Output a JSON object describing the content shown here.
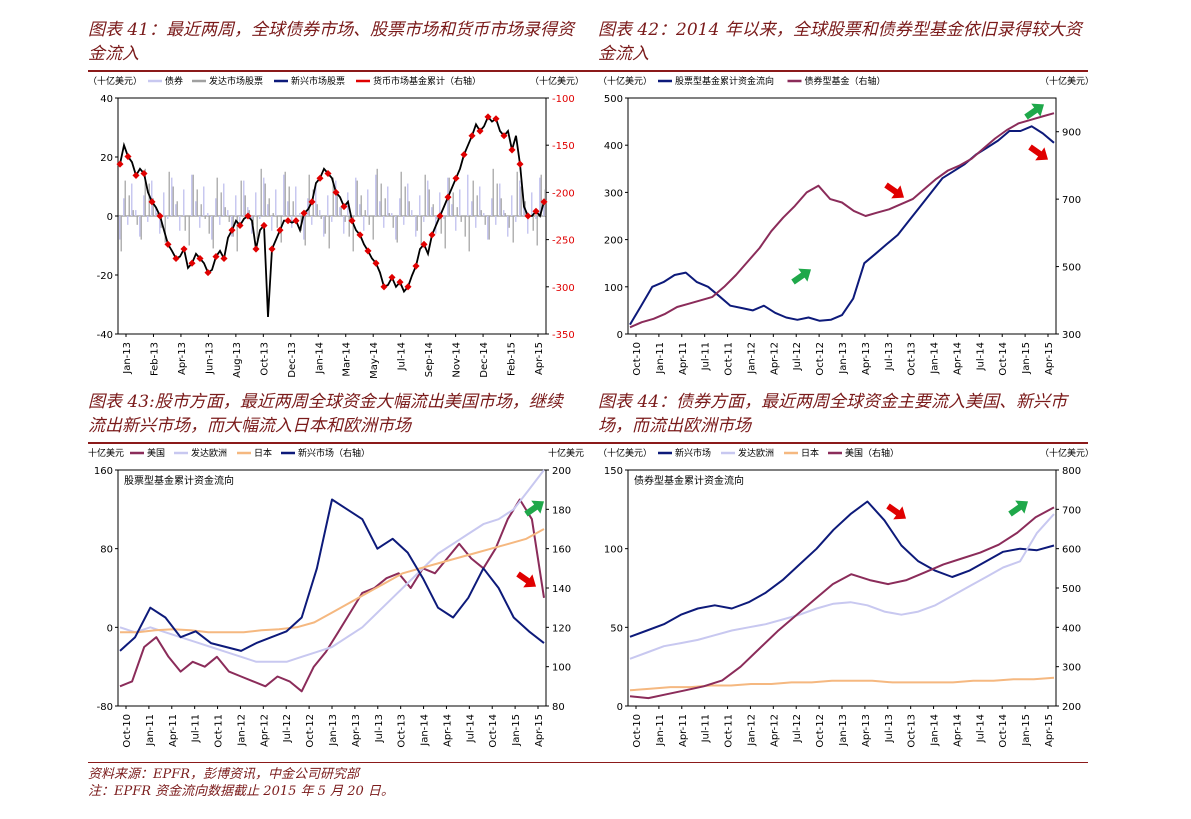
{
  "captions": {
    "c41": "图表 41：最近两周，全球债券市场、股票市场和货币市场录得资金流入",
    "c42": "图表 42：2014 年以来，全球股票和债券型基金依旧录得较大资金流入",
    "c43": "图表 43:股市方面，最近两周全球资金大幅流出美国市场，继续流出新兴市场，而大幅流入日本和欧洲市场",
    "c44": "图表 44：债券方面，最近两周全球资金主要流入美国、新兴市场，而流出欧洲市场"
  },
  "footnotes": {
    "source": "资料来源：EPFR，彭博资讯，中金公司研究部",
    "note": "注：EPFR 资金流向数据截止 2015 年 5 月 20 日。"
  },
  "colors": {
    "navy": "#0d1a7a",
    "maroon": "#8b2c5a",
    "lavender": "#c8c8f0",
    "orange": "#f5b880",
    "gray": "#a0a0a0",
    "red": "#e00000",
    "green": "#1fa84a",
    "axis": "#000000"
  },
  "chart_data": [
    {
      "id": "chart41",
      "type": "bar",
      "title": "",
      "unit_left": "（十亿美元）",
      "unit_right": "（十亿美元）",
      "legend": [
        "债券",
        "发达市场股票",
        "新兴市场股票",
        "货币市场基金累计（右轴）"
      ],
      "x_ticks": [
        "Jan-13",
        "Feb-13",
        "Apr-13",
        "Jun-13",
        "Aug-13",
        "Oct-13",
        "Dec-13",
        "Jan-14",
        "Mar-14",
        "May-14",
        "Jul-14",
        "Sep-14",
        "Nov-14",
        "Dec-14",
        "Feb-15",
        "Apr-15"
      ],
      "ylim_left": [
        -40,
        40
      ],
      "yticks_left": [
        40,
        20,
        0,
        -20,
        -40
      ],
      "ylim_right": [
        -350,
        -100
      ],
      "yticks_right": [
        -100,
        -150,
        -200,
        -250,
        -300,
        -350
      ],
      "money_market_cum_right": [
        -170,
        -150,
        -162,
        -168,
        -182,
        -175,
        -180,
        -200,
        -210,
        -216,
        -225,
        -240,
        -255,
        -262,
        -270,
        -268,
        -260,
        -280,
        -275,
        -265,
        -270,
        -275,
        -285,
        -282,
        -268,
        -262,
        -270,
        -248,
        -240,
        -230,
        -235,
        -228,
        -225,
        -230,
        -260,
        -240,
        -235,
        -332,
        -260,
        -250,
        -240,
        -230,
        -230,
        -232,
        -230,
        -240,
        -222,
        -218,
        -210,
        -190,
        -185,
        -175,
        -180,
        -185,
        -200,
        -205,
        -215,
        -210,
        -230,
        -240,
        -245,
        -255,
        -262,
        -270,
        -275,
        -285,
        -300,
        -298,
        -290,
        -300,
        -295,
        -305,
        -300,
        -288,
        -278,
        -260,
        -255,
        -265,
        -245,
        -235,
        -225,
        -215,
        -205,
        -195,
        -185,
        -175,
        -160,
        -150,
        -140,
        -128,
        -135,
        -130,
        -120,
        -125,
        -122,
        -135,
        -140,
        -135,
        -155,
        -140,
        -170,
        -215,
        -225,
        -225,
        -220,
        -225,
        -210
      ]
    },
    {
      "id": "chart42",
      "type": "line",
      "unit_left": "（十亿美元）",
      "unit_right": "（十亿美元）",
      "legend": [
        "股票型基金累计资金流向",
        "债券型基金（右轴）"
      ],
      "x_ticks": [
        "Oct-10",
        "Jan-11",
        "Apr-11",
        "Jul-11",
        "Oct-11",
        "Jan-12",
        "Apr-12",
        "Jul-12",
        "Oct-12",
        "Jan-13",
        "Apr-13",
        "Jul-13",
        "Oct-13",
        "Jan-14",
        "Apr-14",
        "Jul-14",
        "Oct-14",
        "Jan-15",
        "Apr-15"
      ],
      "ylim_left": [
        0,
        500
      ],
      "yticks_left": [
        500,
        400,
        300,
        200,
        100,
        0
      ],
      "ylim_right": [
        300,
        1000
      ],
      "yticks_right": [
        900,
        700,
        500,
        300
      ],
      "series": [
        {
          "name": "股票型基金累计资金流向",
          "axis": "left",
          "color": "navy",
          "values": [
            20,
            60,
            100,
            110,
            125,
            130,
            110,
            100,
            80,
            60,
            55,
            50,
            60,
            45,
            35,
            30,
            35,
            28,
            30,
            40,
            75,
            150,
            170,
            190,
            210,
            240,
            270,
            300,
            330,
            345,
            360,
            380,
            395,
            410,
            430,
            430,
            440,
            425,
            405
          ]
        },
        {
          "name": "债券型基金（右轴）",
          "axis": "right",
          "color": "maroon",
          "values": [
            320,
            335,
            345,
            360,
            380,
            390,
            400,
            410,
            440,
            475,
            515,
            555,
            605,
            645,
            680,
            720,
            740,
            700,
            690,
            665,
            650,
            660,
            670,
            685,
            700,
            730,
            760,
            785,
            800,
            820,
            850,
            880,
            905,
            925,
            935,
            945,
            955
          ]
        }
      ],
      "annotations": [
        "green-up",
        "red-down",
        "green-up",
        "red-down"
      ]
    },
    {
      "id": "chart43",
      "type": "line",
      "title": "股票型基金累计资金流向",
      "unit_left": "十亿美元",
      "unit_right": "十亿美元",
      "legend": [
        "美国",
        "发达欧洲",
        "日本",
        "新兴市场（右轴）"
      ],
      "x_ticks": [
        "Oct-10",
        "Jan-11",
        "Apr-11",
        "Jul-11",
        "Oct-11",
        "Jan-12",
        "Apr-12",
        "Jul-12",
        "Oct-12",
        "Jan-13",
        "Apr-13",
        "Jul-13",
        "Oct-13",
        "Jan-14",
        "Apr-14",
        "Jul-14",
        "Oct-14",
        "Jan-15",
        "Apr-15"
      ],
      "ylim_left": [
        -80,
        160
      ],
      "yticks_left": [
        160,
        80,
        0,
        -80
      ],
      "ylim_right": [
        80,
        200
      ],
      "yticks_right": [
        200,
        180,
        160,
        140,
        120,
        100,
        80
      ],
      "series": [
        {
          "name": "美国",
          "axis": "left",
          "color": "maroon",
          "values": [
            -60,
            -55,
            -20,
            -10,
            -30,
            -45,
            -35,
            -40,
            -30,
            -45,
            -50,
            -55,
            -60,
            -50,
            -55,
            -65,
            -40,
            -25,
            -5,
            15,
            35,
            40,
            50,
            55,
            40,
            60,
            55,
            70,
            85,
            70,
            60,
            80,
            110,
            130,
            110,
            30
          ]
        },
        {
          "name": "发达欧洲",
          "axis": "left",
          "color": "lavender",
          "values": [
            0,
            -5,
            0,
            -5,
            -10,
            -15,
            -20,
            -25,
            -30,
            -35,
            -35,
            -35,
            -30,
            -25,
            -20,
            -10,
            0,
            15,
            30,
            45,
            60,
            75,
            85,
            95,
            105,
            110,
            120,
            140,
            160
          ]
        },
        {
          "name": "日本",
          "axis": "left",
          "color": "orange",
          "values": [
            -5,
            -5,
            -3,
            -2,
            -3,
            -5,
            -5,
            -5,
            -3,
            -2,
            0,
            5,
            15,
            25,
            35,
            45,
            55,
            60,
            65,
            70,
            75,
            80,
            85,
            90,
            100
          ]
        },
        {
          "name": "新兴市场（右轴）",
          "axis": "right",
          "color": "navy",
          "values": [
            108,
            115,
            130,
            125,
            115,
            118,
            112,
            110,
            108,
            112,
            115,
            118,
            125,
            150,
            185,
            180,
            175,
            160,
            165,
            158,
            145,
            130,
            125,
            135,
            150,
            140,
            125,
            118,
            112
          ]
        }
      ],
      "annotations": [
        "green-up",
        "red-down"
      ]
    },
    {
      "id": "chart44",
      "type": "line",
      "title": "债券型基金累计资金流向",
      "unit_left": "（十亿美元）",
      "unit_right": "（十亿美元）",
      "legend": [
        "新兴市场",
        "发达欧洲",
        "日本",
        "美国（右轴）"
      ],
      "x_ticks": [
        "Oct-10",
        "Jan-11",
        "Apr-11",
        "Jul-11",
        "Oct-11",
        "Jan-12",
        "Apr-12",
        "Jul-12",
        "Oct-12",
        "Jan-13",
        "Apr-13",
        "Jul-13",
        "Oct-13",
        "Jan-14",
        "Apr-14",
        "Jul-14",
        "Oct-14",
        "Jan-15",
        "Apr-15"
      ],
      "ylim_left": [
        0,
        150
      ],
      "yticks_left": [
        150,
        100,
        50,
        0
      ],
      "ylim_right": [
        200,
        800
      ],
      "yticks_right": [
        800,
        700,
        600,
        500,
        400,
        300,
        200
      ],
      "series": [
        {
          "name": "新兴市场",
          "axis": "left",
          "color": "navy",
          "values": [
            44,
            48,
            52,
            58,
            62,
            64,
            62,
            66,
            72,
            80,
            90,
            100,
            112,
            122,
            130,
            118,
            102,
            92,
            86,
            82,
            86,
            92,
            98,
            100,
            99,
            102
          ]
        },
        {
          "name": "发达欧洲",
          "axis": "left",
          "color": "lavender",
          "values": [
            30,
            34,
            38,
            40,
            42,
            45,
            48,
            50,
            52,
            55,
            58,
            62,
            65,
            66,
            64,
            60,
            58,
            60,
            64,
            70,
            76,
            82,
            88,
            92,
            110,
            122
          ]
        },
        {
          "name": "日本",
          "axis": "left",
          "color": "orange",
          "values": [
            10,
            11,
            12,
            12,
            13,
            13,
            14,
            14,
            15,
            15,
            16,
            16,
            16,
            15,
            15,
            15,
            15,
            16,
            16,
            17,
            17,
            18
          ]
        },
        {
          "name": "美国（右轴）",
          "axis": "right",
          "color": "maroon",
          "values": [
            225,
            220,
            230,
            240,
            250,
            265,
            300,
            345,
            390,
            430,
            470,
            510,
            535,
            520,
            510,
            520,
            540,
            560,
            575,
            590,
            610,
            640,
            680,
            705
          ]
        }
      ],
      "annotations": [
        "red-down",
        "green-up"
      ]
    }
  ]
}
